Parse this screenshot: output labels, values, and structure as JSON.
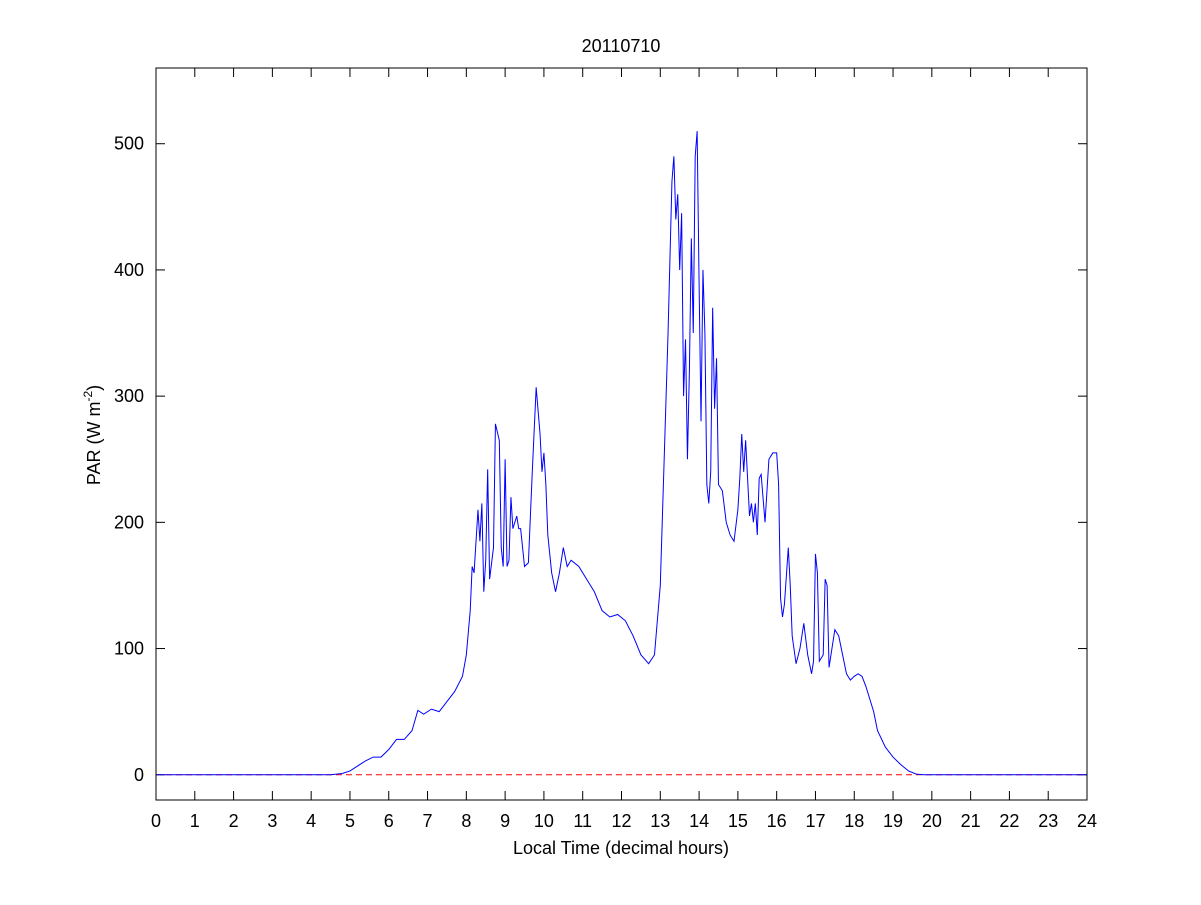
{
  "chart_data": {
    "type": "line",
    "title": "20110710",
    "xlabel": "Local Time (decimal hours)",
    "ylabel": [
      "PAR (W m",
      "-2",
      ")"
    ],
    "xlim": [
      0,
      24
    ],
    "xticks": [
      0,
      1,
      2,
      3,
      4,
      5,
      6,
      7,
      8,
      9,
      10,
      11,
      12,
      13,
      14,
      15,
      16,
      17,
      18,
      19,
      20,
      21,
      22,
      23,
      24
    ],
    "ylim": [
      -20,
      560
    ],
    "yticks": [
      0,
      100,
      200,
      300,
      400,
      500
    ],
    "reference_line": {
      "value": 0,
      "color": "#ff0000",
      "style": "dashed"
    },
    "series": [
      {
        "color": "#0000ff",
        "x": [
          0,
          4.5,
          4.8,
          5.0,
          5.2,
          5.4,
          5.6,
          5.8,
          6.0,
          6.2,
          6.4,
          6.6,
          6.75,
          6.9,
          7.1,
          7.3,
          7.5,
          7.7,
          7.9,
          8.0,
          8.1,
          8.15,
          8.2,
          8.3,
          8.35,
          8.4,
          8.45,
          8.5,
          8.55,
          8.6,
          8.7,
          8.75,
          8.85,
          8.9,
          8.95,
          9.0,
          9.05,
          9.1,
          9.15,
          9.2,
          9.3,
          9.35,
          9.4,
          9.5,
          9.6,
          9.7,
          9.8,
          9.9,
          9.95,
          10.0,
          10.05,
          10.1,
          10.2,
          10.3,
          10.4,
          10.5,
          10.6,
          10.7,
          10.9,
          11.1,
          11.3,
          11.5,
          11.7,
          11.9,
          12.1,
          12.3,
          12.5,
          12.7,
          12.85,
          13.0,
          13.1,
          13.2,
          13.3,
          13.35,
          13.4,
          13.45,
          13.5,
          13.55,
          13.6,
          13.65,
          13.7,
          13.75,
          13.8,
          13.85,
          13.9,
          13.95,
          14.0,
          14.05,
          14.1,
          14.15,
          14.2,
          14.25,
          14.3,
          14.35,
          14.4,
          14.45,
          14.5,
          14.6,
          14.7,
          14.8,
          14.9,
          15.0,
          15.05,
          15.1,
          15.15,
          15.2,
          15.3,
          15.35,
          15.4,
          15.45,
          15.5,
          15.55,
          15.6,
          15.7,
          15.8,
          15.9,
          16.0,
          16.05,
          16.1,
          16.15,
          16.2,
          16.3,
          16.35,
          16.4,
          16.5,
          16.6,
          16.7,
          16.8,
          16.9,
          16.95,
          17.0,
          17.05,
          17.1,
          17.2,
          17.25,
          17.3,
          17.35,
          17.4,
          17.5,
          17.6,
          17.7,
          17.8,
          17.9,
          18.0,
          18.1,
          18.2,
          18.3,
          18.4,
          18.5,
          18.6,
          18.8,
          19.0,
          19.2,
          19.4,
          19.6,
          19.8,
          24
        ],
        "values": [
          0,
          0,
          1,
          3,
          7,
          11,
          14,
          14,
          20,
          28,
          28,
          35,
          51,
          48,
          52,
          50,
          58,
          66,
          78,
          95,
          130,
          165,
          160,
          210,
          185,
          215,
          145,
          170,
          242,
          155,
          180,
          278,
          265,
          180,
          165,
          250,
          165,
          170,
          220,
          195,
          205,
          195,
          195,
          165,
          168,
          240,
          307,
          270,
          240,
          255,
          230,
          190,
          160,
          145,
          160,
          180,
          165,
          170,
          165,
          155,
          145,
          130,
          125,
          127,
          122,
          110,
          95,
          88,
          95,
          150,
          250,
          350,
          470,
          490,
          440,
          460,
          400,
          445,
          300,
          345,
          250,
          320,
          425,
          350,
          490,
          510,
          390,
          280,
          400,
          350,
          230,
          215,
          240,
          370,
          290,
          330,
          230,
          225,
          200,
          190,
          185,
          210,
          235,
          270,
          240,
          265,
          205,
          215,
          200,
          215,
          190,
          235,
          238,
          200,
          250,
          255,
          255,
          230,
          140,
          125,
          135,
          180,
          150,
          110,
          88,
          100,
          120,
          95,
          80,
          90,
          175,
          160,
          90,
          95,
          155,
          150,
          85,
          95,
          115,
          110,
          95,
          80,
          75,
          78,
          80,
          78,
          70,
          60,
          50,
          35,
          22,
          14,
          8,
          3,
          0.5,
          0,
          0
        ]
      }
    ]
  }
}
